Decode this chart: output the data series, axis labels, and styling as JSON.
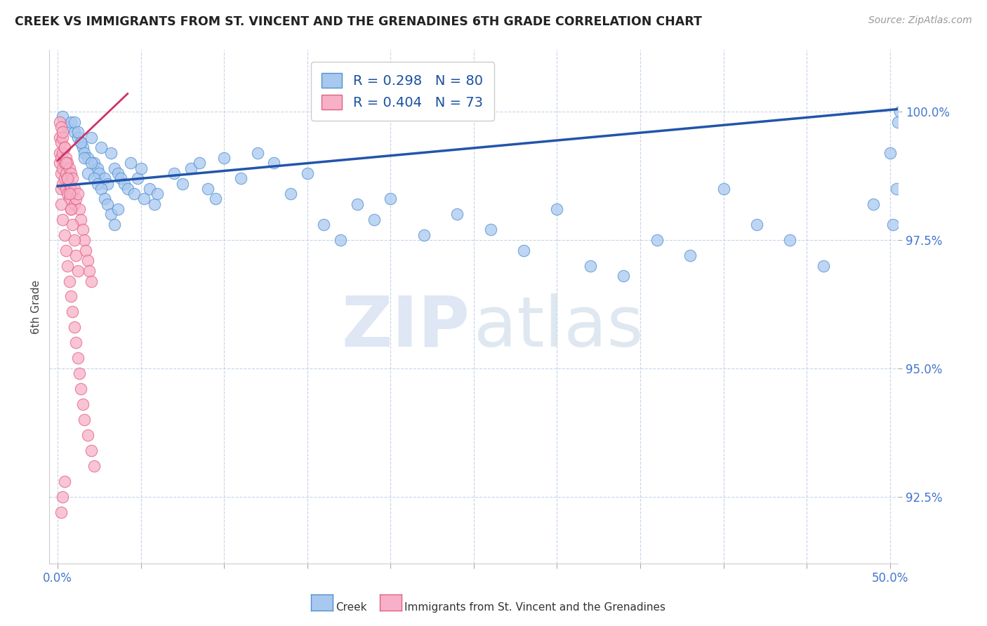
{
  "title": "CREEK VS IMMIGRANTS FROM ST. VINCENT AND THE GRENADINES 6TH GRADE CORRELATION CHART",
  "source_text": "Source: ZipAtlas.com",
  "ylabel": "6th Grade",
  "x_ticks": [
    0.0,
    0.05,
    0.1,
    0.15,
    0.2,
    0.25,
    0.3,
    0.35,
    0.4,
    0.45,
    0.5
  ],
  "x_tick_labels_show": [
    "0.0%",
    "50.0%"
  ],
  "y_ticks": [
    92.5,
    95.0,
    97.5,
    100.0
  ],
  "y_tick_labels": [
    "92.5%",
    "95.0%",
    "97.5%",
    "100.0%"
  ],
  "xlim": [
    -0.005,
    0.505
  ],
  "ylim": [
    91.2,
    101.2
  ],
  "creek_color": "#a8c8f0",
  "creek_edge_color": "#5090d0",
  "immigrants_color": "#f8b0c8",
  "immigrants_edge_color": "#e06080",
  "creek_line_color": "#2255aa",
  "immigrants_line_color": "#cc3366",
  "creek_trendline": [
    0.0,
    0.505,
    98.55,
    100.05
  ],
  "immigrants_trendline": [
    0.0,
    0.042,
    99.05,
    100.35
  ],
  "creek_scatter_x": [
    0.003,
    0.006,
    0.008,
    0.01,
    0.012,
    0.014,
    0.015,
    0.016,
    0.018,
    0.02,
    0.022,
    0.024,
    0.025,
    0.026,
    0.028,
    0.03,
    0.032,
    0.034,
    0.036,
    0.038,
    0.04,
    0.042,
    0.044,
    0.046,
    0.048,
    0.05,
    0.052,
    0.055,
    0.058,
    0.06,
    0.01,
    0.012,
    0.014,
    0.016,
    0.018,
    0.02,
    0.022,
    0.024,
    0.026,
    0.028,
    0.03,
    0.032,
    0.034,
    0.036,
    0.07,
    0.075,
    0.08,
    0.085,
    0.09,
    0.095,
    0.1,
    0.11,
    0.12,
    0.13,
    0.14,
    0.15,
    0.16,
    0.17,
    0.18,
    0.19,
    0.2,
    0.22,
    0.24,
    0.26,
    0.28,
    0.3,
    0.32,
    0.34,
    0.36,
    0.38,
    0.4,
    0.42,
    0.44,
    0.46,
    0.49,
    0.5,
    0.502,
    0.504,
    0.505,
    0.506
  ],
  "creek_scatter_y": [
    99.9,
    99.7,
    99.8,
    99.6,
    99.5,
    99.4,
    99.3,
    99.2,
    99.1,
    99.5,
    99.0,
    98.9,
    98.8,
    99.3,
    98.7,
    98.6,
    99.2,
    98.9,
    98.8,
    98.7,
    98.6,
    98.5,
    99.0,
    98.4,
    98.7,
    98.9,
    98.3,
    98.5,
    98.2,
    98.4,
    99.8,
    99.6,
    99.4,
    99.1,
    98.8,
    99.0,
    98.7,
    98.6,
    98.5,
    98.3,
    98.2,
    98.0,
    97.8,
    98.1,
    98.8,
    98.6,
    98.9,
    99.0,
    98.5,
    98.3,
    99.1,
    98.7,
    99.2,
    99.0,
    98.4,
    98.8,
    97.8,
    97.5,
    98.2,
    97.9,
    98.3,
    97.6,
    98.0,
    97.7,
    97.3,
    98.1,
    97.0,
    96.8,
    97.5,
    97.2,
    98.5,
    97.8,
    97.5,
    97.0,
    98.2,
    99.2,
    97.8,
    98.5,
    99.8,
    100.0
  ],
  "immigrants_scatter_x": [
    0.001,
    0.001,
    0.001,
    0.001,
    0.002,
    0.002,
    0.002,
    0.002,
    0.002,
    0.003,
    0.003,
    0.003,
    0.003,
    0.004,
    0.004,
    0.004,
    0.005,
    0.005,
    0.005,
    0.006,
    0.006,
    0.006,
    0.007,
    0.007,
    0.007,
    0.008,
    0.008,
    0.008,
    0.009,
    0.009,
    0.01,
    0.01,
    0.011,
    0.012,
    0.013,
    0.014,
    0.015,
    0.016,
    0.017,
    0.018,
    0.019,
    0.02,
    0.002,
    0.003,
    0.004,
    0.005,
    0.006,
    0.007,
    0.008,
    0.009,
    0.01,
    0.011,
    0.012,
    0.013,
    0.014,
    0.015,
    0.016,
    0.018,
    0.02,
    0.022,
    0.003,
    0.004,
    0.005,
    0.006,
    0.007,
    0.008,
    0.009,
    0.01,
    0.011,
    0.012,
    0.002,
    0.003,
    0.004
  ],
  "immigrants_scatter_y": [
    99.8,
    99.5,
    99.2,
    99.0,
    99.7,
    99.4,
    99.1,
    98.8,
    98.5,
    99.5,
    99.2,
    98.9,
    98.6,
    99.3,
    99.0,
    98.7,
    99.1,
    98.8,
    98.5,
    99.0,
    98.7,
    98.4,
    98.9,
    98.6,
    98.3,
    98.8,
    98.5,
    98.1,
    98.7,
    98.4,
    98.5,
    98.2,
    98.3,
    98.4,
    98.1,
    97.9,
    97.7,
    97.5,
    97.3,
    97.1,
    96.9,
    96.7,
    98.2,
    97.9,
    97.6,
    97.3,
    97.0,
    96.7,
    96.4,
    96.1,
    95.8,
    95.5,
    95.2,
    94.9,
    94.6,
    94.3,
    94.0,
    93.7,
    93.4,
    93.1,
    99.6,
    99.3,
    99.0,
    98.7,
    98.4,
    98.1,
    97.8,
    97.5,
    97.2,
    96.9,
    92.2,
    92.5,
    92.8
  ],
  "watermark_zip": "ZIP",
  "watermark_atlas": "atlas",
  "legend_label_creek": "R = 0.298   N = 80",
  "legend_label_immigrants": "R = 0.404   N = 73",
  "bottom_legend_creek": "Creek",
  "bottom_legend_immigrants": "Immigrants from St. Vincent and the Grenadines"
}
